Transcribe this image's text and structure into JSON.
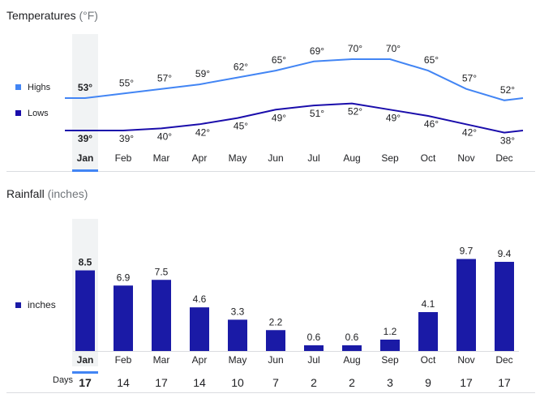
{
  "temperature_section": {
    "title": "Temperatures",
    "unit": "(°F)",
    "legend_highs": "Highs",
    "legend_lows": "Lows"
  },
  "rainfall_section": {
    "title": "Rainfall",
    "unit": "(inches)",
    "legend": "inches",
    "days_label": "Days"
  },
  "colors": {
    "highs": "#4285f4",
    "lows": "#1a0dab",
    "bars": "#1a1aa6",
    "selected_highlight": "#f1f3f4",
    "selected_underline": "#4285f4"
  },
  "selected_month": "Jan",
  "chart_data": [
    {
      "type": "line",
      "title": "Temperatures (°F)",
      "categories": [
        "Jan",
        "Feb",
        "Mar",
        "Apr",
        "May",
        "Jun",
        "Jul",
        "Aug",
        "Sep",
        "Oct",
        "Nov",
        "Dec"
      ],
      "series": [
        {
          "name": "Highs",
          "values": [
            53,
            55,
            57,
            59,
            62,
            65,
            69,
            70,
            70,
            65,
            57,
            52
          ]
        },
        {
          "name": "Lows",
          "values": [
            39,
            39,
            40,
            42,
            45,
            49,
            51,
            52,
            49,
            46,
            42,
            38
          ]
        }
      ],
      "value_suffix": "°"
    },
    {
      "type": "bar",
      "title": "Rainfall (inches)",
      "categories": [
        "Jan",
        "Feb",
        "Mar",
        "Apr",
        "May",
        "Jun",
        "Jul",
        "Aug",
        "Sep",
        "Oct",
        "Nov",
        "Dec"
      ],
      "values": [
        8.5,
        6.9,
        7.5,
        4.6,
        3.3,
        2.2,
        0.6,
        0.6,
        1.2,
        4.1,
        9.7,
        9.4
      ],
      "days": [
        17,
        14,
        17,
        14,
        10,
        7,
        2,
        2,
        3,
        9,
        17,
        17
      ],
      "ylim": [
        0,
        10
      ]
    }
  ]
}
